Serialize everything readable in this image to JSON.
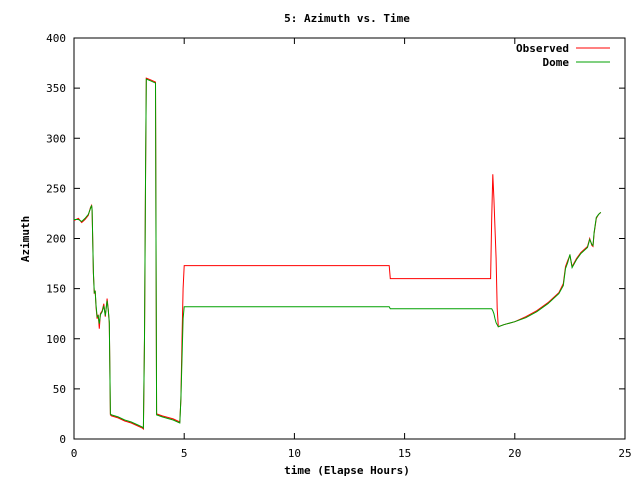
{
  "chart_data": {
    "type": "line",
    "title": "5: Azimuth vs. Time",
    "xlabel": "time (Elapse Hours)",
    "ylabel": "Azimuth",
    "xlim": [
      0,
      25
    ],
    "ylim": [
      0,
      400
    ],
    "xticks": [
      0,
      5,
      10,
      15,
      20,
      25
    ],
    "yticks": [
      0,
      50,
      100,
      150,
      200,
      250,
      300,
      350,
      400
    ],
    "grid": false,
    "legend": "top-right",
    "series": [
      {
        "name": "Observed",
        "color": "#ff0000",
        "points": [
          [
            0,
            218
          ],
          [
            0.2,
            220
          ],
          [
            0.35,
            216
          ],
          [
            0.5,
            219
          ],
          [
            0.65,
            223
          ],
          [
            0.75,
            231
          ],
          [
            0.8,
            233
          ],
          [
            0.82,
            228
          ],
          [
            0.88,
            165
          ],
          [
            0.92,
            145
          ],
          [
            0.96,
            148
          ],
          [
            1.0,
            132
          ],
          [
            1.05,
            120
          ],
          [
            1.1,
            124
          ],
          [
            1.15,
            110
          ],
          [
            1.2,
            125
          ],
          [
            1.28,
            128
          ],
          [
            1.35,
            135
          ],
          [
            1.42,
            122
          ],
          [
            1.5,
            140
          ],
          [
            1.55,
            130
          ],
          [
            1.6,
            115
          ],
          [
            1.65,
            24
          ],
          [
            1.7,
            23
          ],
          [
            2.0,
            21
          ],
          [
            2.3,
            18
          ],
          [
            2.6,
            16
          ],
          [
            2.9,
            13
          ],
          [
            3.1,
            11
          ],
          [
            3.15,
            10
          ],
          [
            3.2,
            100
          ],
          [
            3.25,
            270
          ],
          [
            3.28,
            360
          ],
          [
            3.5,
            358
          ],
          [
            3.7,
            356
          ],
          [
            3.72,
            200
          ],
          [
            3.75,
            25
          ],
          [
            4.0,
            23
          ],
          [
            4.5,
            20
          ],
          [
            4.8,
            17
          ],
          [
            4.85,
            40
          ],
          [
            4.9,
            100
          ],
          [
            4.95,
            150
          ],
          [
            5.0,
            173
          ],
          [
            6.0,
            173
          ],
          [
            10.0,
            173
          ],
          [
            14.3,
            173
          ],
          [
            14.35,
            160
          ],
          [
            16.0,
            160
          ],
          [
            18.9,
            160
          ],
          [
            18.95,
            220
          ],
          [
            19.0,
            264
          ],
          [
            19.05,
            240
          ],
          [
            19.1,
            210
          ],
          [
            19.15,
            180
          ],
          [
            19.2,
            130
          ],
          [
            19.25,
            112
          ],
          [
            19.5,
            114
          ],
          [
            20.0,
            117
          ],
          [
            20.5,
            122
          ],
          [
            21.0,
            128
          ],
          [
            21.5,
            136
          ],
          [
            22.0,
            146
          ],
          [
            22.2,
            155
          ],
          [
            22.3,
            172
          ],
          [
            22.4,
            178
          ],
          [
            22.5,
            183
          ],
          [
            22.6,
            172
          ],
          [
            22.8,
            180
          ],
          [
            23.0,
            186
          ],
          [
            23.3,
            192
          ],
          [
            23.4,
            200
          ],
          [
            23.5,
            193
          ],
          [
            23.55,
            192
          ],
          [
            23.6,
            205
          ],
          [
            23.7,
            220
          ],
          [
            23.8,
            224
          ],
          [
            23.9,
            226
          ]
        ]
      },
      {
        "name": "Dome",
        "color": "#00a000",
        "points": [
          [
            0,
            219
          ],
          [
            0.2,
            219
          ],
          [
            0.35,
            217
          ],
          [
            0.5,
            220
          ],
          [
            0.65,
            224
          ],
          [
            0.75,
            230
          ],
          [
            0.8,
            233
          ],
          [
            0.82,
            229
          ],
          [
            0.88,
            166
          ],
          [
            0.92,
            146
          ],
          [
            0.96,
            147
          ],
          [
            1.0,
            134
          ],
          [
            1.05,
            122
          ],
          [
            1.1,
            123
          ],
          [
            1.15,
            115
          ],
          [
            1.2,
            124
          ],
          [
            1.28,
            127
          ],
          [
            1.35,
            133
          ],
          [
            1.42,
            123
          ],
          [
            1.5,
            138
          ],
          [
            1.55,
            129
          ],
          [
            1.6,
            117
          ],
          [
            1.65,
            25
          ],
          [
            1.7,
            24
          ],
          [
            2.0,
            22
          ],
          [
            2.3,
            19
          ],
          [
            2.6,
            17
          ],
          [
            2.9,
            14
          ],
          [
            3.1,
            12
          ],
          [
            3.15,
            11
          ],
          [
            3.2,
            102
          ],
          [
            3.25,
            272
          ],
          [
            3.28,
            359
          ],
          [
            3.5,
            357
          ],
          [
            3.7,
            355
          ],
          [
            3.72,
            200
          ],
          [
            3.75,
            24
          ],
          [
            4.0,
            22
          ],
          [
            4.5,
            19
          ],
          [
            4.8,
            16
          ],
          [
            4.85,
            40
          ],
          [
            4.9,
            80
          ],
          [
            4.95,
            120
          ],
          [
            5.0,
            132
          ],
          [
            6.0,
            132
          ],
          [
            10.0,
            132
          ],
          [
            14.3,
            132
          ],
          [
            14.35,
            130
          ],
          [
            16.0,
            130
          ],
          [
            18.9,
            130
          ],
          [
            18.95,
            130
          ],
          [
            19.0,
            128
          ],
          [
            19.05,
            125
          ],
          [
            19.1,
            120
          ],
          [
            19.15,
            116
          ],
          [
            19.2,
            114
          ],
          [
            19.25,
            112
          ],
          [
            19.5,
            114
          ],
          [
            20.0,
            117
          ],
          [
            20.5,
            121
          ],
          [
            21.0,
            127
          ],
          [
            21.5,
            135
          ],
          [
            22.0,
            145
          ],
          [
            22.2,
            153
          ],
          [
            22.3,
            170
          ],
          [
            22.4,
            176
          ],
          [
            22.5,
            184
          ],
          [
            22.6,
            171
          ],
          [
            22.8,
            179
          ],
          [
            23.0,
            185
          ],
          [
            23.3,
            191
          ],
          [
            23.4,
            199
          ],
          [
            23.5,
            194
          ],
          [
            23.55,
            193
          ],
          [
            23.6,
            206
          ],
          [
            23.7,
            221
          ],
          [
            23.8,
            224
          ],
          [
            23.9,
            226
          ]
        ]
      }
    ]
  }
}
